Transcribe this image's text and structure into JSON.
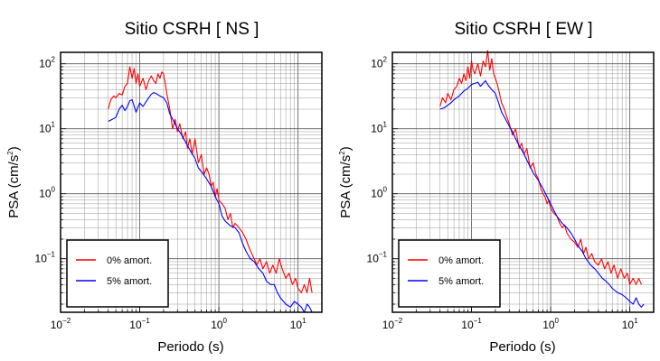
{
  "chart_data": [
    {
      "type": "line",
      "title": "Sitio CSRH [ NS ]",
      "xlabel": "Periodo (s)",
      "ylabel": "PSA (cm/s",
      "ylabel_sup": "2",
      "ylabel_end": ")",
      "xscale": "log",
      "yscale": "log",
      "xlim": [
        0.01,
        20
      ],
      "ylim": [
        0.015,
        150
      ],
      "grid": true,
      "legend_position": "bottom-left",
      "x_ticks": [
        {
          "base": "10",
          "exp": "−2"
        },
        {
          "base": "10",
          "exp": "−1"
        },
        {
          "base": "10",
          "exp": "0"
        },
        {
          "base": "10",
          "exp": "1"
        }
      ],
      "y_ticks": [
        {
          "base": "10",
          "exp": "2"
        },
        {
          "base": "10",
          "exp": "1"
        },
        {
          "base": "10",
          "exp": "0"
        },
        {
          "base": "10",
          "exp": "−1"
        }
      ],
      "series": [
        {
          "name": "0% amort.",
          "color": "#ff0000",
          "x": [
            0.04,
            0.043,
            0.047,
            0.05,
            0.055,
            0.06,
            0.065,
            0.07,
            0.075,
            0.08,
            0.085,
            0.09,
            0.095,
            0.1,
            0.11,
            0.12,
            0.13,
            0.14,
            0.15,
            0.16,
            0.17,
            0.18,
            0.19,
            0.2,
            0.21,
            0.22,
            0.24,
            0.26,
            0.28,
            0.3,
            0.32,
            0.35,
            0.38,
            0.4,
            0.43,
            0.46,
            0.5,
            0.55,
            0.6,
            0.65,
            0.7,
            0.75,
            0.8,
            0.85,
            0.9,
            0.95,
            1.0,
            1.1,
            1.2,
            1.3,
            1.4,
            1.5,
            1.6,
            1.8,
            2.0,
            2.2,
            2.4,
            2.6,
            2.8,
            3.0,
            3.3,
            3.6,
            4.0,
            4.4,
            4.8,
            5.3,
            5.8,
            6.3,
            7.0,
            7.7,
            8.5,
            9.3,
            10,
            11,
            12,
            13,
            14,
            15
          ],
          "y": [
            20,
            28,
            32,
            30,
            35,
            33,
            45,
            50,
            90,
            60,
            85,
            50,
            70,
            45,
            60,
            40,
            55,
            65,
            55,
            50,
            70,
            60,
            75,
            70,
            50,
            35,
            20,
            10,
            14,
            9,
            12,
            7,
            9,
            5,
            7,
            4,
            7,
            3,
            4,
            2,
            2.5,
            2,
            1.3,
            1.5,
            0.9,
            1.2,
            0.8,
            0.7,
            0.6,
            0.4,
            0.5,
            0.3,
            0.35,
            0.3,
            0.25,
            0.2,
            0.15,
            0.12,
            0.1,
            0.08,
            0.1,
            0.07,
            0.09,
            0.06,
            0.08,
            0.06,
            0.1,
            0.07,
            0.05,
            0.06,
            0.04,
            0.05,
            0.035,
            0.03,
            0.04,
            0.03,
            0.05,
            0.03
          ]
        },
        {
          "name": "5% amort.",
          "color": "#0000ff",
          "x": [
            0.04,
            0.045,
            0.05,
            0.055,
            0.06,
            0.065,
            0.07,
            0.075,
            0.08,
            0.09,
            0.1,
            0.11,
            0.12,
            0.13,
            0.14,
            0.15,
            0.16,
            0.18,
            0.2,
            0.22,
            0.24,
            0.27,
            0.3,
            0.33,
            0.36,
            0.4,
            0.45,
            0.5,
            0.55,
            0.6,
            0.7,
            0.8,
            0.9,
            1.0,
            1.1,
            1.2,
            1.4,
            1.6,
            1.8,
            2.0,
            2.2,
            2.5,
            2.8,
            3.2,
            3.6,
            4.0,
            4.5,
            5.0,
            5.5,
            6.0,
            7.0,
            8.0,
            9.0,
            10,
            11,
            12,
            13,
            14,
            15
          ],
          "y": [
            13,
            14,
            15,
            20,
            23,
            19,
            22,
            27,
            28,
            18,
            25,
            22,
            26,
            30,
            34,
            36,
            35,
            32,
            30,
            25,
            17,
            13,
            10,
            8.5,
            7,
            5.5,
            4.3,
            3.5,
            2.5,
            2.2,
            1.7,
            1.3,
            0.9,
            0.7,
            0.45,
            0.38,
            0.32,
            0.3,
            0.25,
            0.17,
            0.13,
            0.1,
            0.09,
            0.07,
            0.06,
            0.045,
            0.04,
            0.04,
            0.03,
            0.025,
            0.02,
            0.018,
            0.022,
            0.02,
            0.018,
            0.015,
            0.02,
            0.018,
            0.015
          ]
        }
      ]
    },
    {
      "type": "line",
      "title": "Sitio CSRH [ EW ]",
      "xlabel": "Periodo (s)",
      "ylabel": "PSA (cm/s",
      "ylabel_sup": "2",
      "ylabel_end": ")",
      "xscale": "log",
      "yscale": "log",
      "xlim": [
        0.01,
        20
      ],
      "ylim": [
        0.015,
        150
      ],
      "grid": true,
      "legend_position": "bottom-left",
      "x_ticks": [
        {
          "base": "10",
          "exp": "−2"
        },
        {
          "base": "10",
          "exp": "−1"
        },
        {
          "base": "10",
          "exp": "0"
        },
        {
          "base": "10",
          "exp": "1"
        }
      ],
      "y_ticks": [
        {
          "base": "10",
          "exp": "2"
        },
        {
          "base": "10",
          "exp": "1"
        },
        {
          "base": "10",
          "exp": "0"
        },
        {
          "base": "10",
          "exp": "−1"
        }
      ],
      "series": [
        {
          "name": "0% amort.",
          "color": "#ff0000",
          "x": [
            0.04,
            0.043,
            0.047,
            0.05,
            0.055,
            0.06,
            0.065,
            0.07,
            0.075,
            0.08,
            0.085,
            0.09,
            0.095,
            0.1,
            0.105,
            0.11,
            0.12,
            0.13,
            0.14,
            0.15,
            0.16,
            0.17,
            0.18,
            0.19,
            0.2,
            0.21,
            0.22,
            0.24,
            0.26,
            0.28,
            0.3,
            0.33,
            0.36,
            0.4,
            0.43,
            0.46,
            0.5,
            0.55,
            0.6,
            0.65,
            0.7,
            0.75,
            0.8,
            0.85,
            0.9,
            0.95,
            1.0,
            1.1,
            1.2,
            1.3,
            1.4,
            1.5,
            1.6,
            1.8,
            2.0,
            2.2,
            2.4,
            2.6,
            2.8,
            3.0,
            3.3,
            3.6,
            4.0,
            4.4,
            4.8,
            5.3,
            5.8,
            6.3,
            7.0,
            7.7,
            8.5,
            9.3,
            10,
            11,
            12,
            13,
            14
          ],
          "y": [
            22,
            30,
            25,
            35,
            28,
            40,
            45,
            60,
            50,
            70,
            55,
            90,
            60,
            110,
            80,
            70,
            100,
            65,
            110,
            90,
            160,
            80,
            120,
            70,
            60,
            50,
            40,
            25,
            20,
            15,
            12,
            8,
            10,
            5,
            6,
            4,
            5,
            2.5,
            3,
            2,
            1.7,
            1.2,
            1.0,
            0.9,
            0.7,
            0.8,
            0.6,
            0.5,
            0.45,
            0.35,
            0.3,
            0.33,
            0.25,
            0.2,
            0.18,
            0.15,
            0.2,
            0.12,
            0.15,
            0.1,
            0.12,
            0.09,
            0.08,
            0.1,
            0.07,
            0.09,
            0.06,
            0.08,
            0.05,
            0.07,
            0.05,
            0.06,
            0.04,
            0.05,
            0.04,
            0.05,
            0.04
          ]
        },
        {
          "name": "5% amort.",
          "color": "#0000ff",
          "x": [
            0.04,
            0.045,
            0.05,
            0.055,
            0.06,
            0.065,
            0.07,
            0.08,
            0.09,
            0.1,
            0.11,
            0.12,
            0.13,
            0.14,
            0.15,
            0.16,
            0.18,
            0.2,
            0.22,
            0.24,
            0.27,
            0.3,
            0.33,
            0.36,
            0.4,
            0.45,
            0.5,
            0.55,
            0.6,
            0.7,
            0.8,
            0.9,
            1.0,
            1.1,
            1.2,
            1.4,
            1.6,
            1.8,
            2.0,
            2.2,
            2.5,
            2.8,
            3.2,
            3.6,
            4.0,
            4.5,
            5.0,
            5.5,
            6.0,
            7.0,
            8.0,
            9.0,
            10,
            11,
            12,
            13,
            14,
            15
          ],
          "y": [
            20,
            21,
            23,
            25,
            28,
            30,
            32,
            38,
            42,
            48,
            50,
            52,
            45,
            50,
            55,
            48,
            40,
            35,
            25,
            18,
            14,
            11,
            9,
            7,
            5.5,
            4.3,
            3.3,
            2.6,
            2.1,
            1.6,
            1.2,
            0.9,
            0.7,
            0.55,
            0.45,
            0.35,
            0.3,
            0.25,
            0.2,
            0.16,
            0.13,
            0.1,
            0.08,
            0.07,
            0.06,
            0.05,
            0.045,
            0.04,
            0.035,
            0.03,
            0.028,
            0.025,
            0.022,
            0.02,
            0.025,
            0.02,
            0.018,
            0.02
          ]
        }
      ]
    }
  ]
}
